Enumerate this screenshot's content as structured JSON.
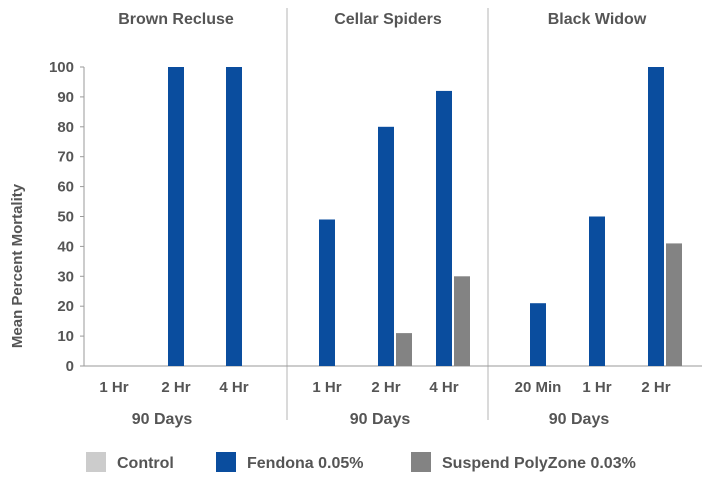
{
  "chart_data": {
    "type": "bar",
    "ylabel": "Mean Percent Mortality",
    "ylim": [
      0,
      100
    ],
    "yticks": [
      0,
      10,
      20,
      30,
      40,
      50,
      60,
      70,
      80,
      90,
      100
    ],
    "grid": false,
    "legend_position": "bottom",
    "groups": [
      {
        "title": "Brown Recluse",
        "subtitle": "90 Days",
        "categories": [
          "1 Hr",
          "2 Hr",
          "4 Hr"
        ],
        "series": [
          {
            "name": "Control",
            "values": [
              0,
              0,
              0
            ]
          },
          {
            "name": "Fendona 0.05%",
            "values": [
              0,
              100,
              100
            ]
          },
          {
            "name": "Suspend PolyZone 0.03%",
            "values": [
              0,
              0,
              0
            ]
          }
        ]
      },
      {
        "title": "Cellar Spiders",
        "subtitle": "90 Days",
        "categories": [
          "1 Hr",
          "2 Hr",
          "4 Hr"
        ],
        "series": [
          {
            "name": "Control",
            "values": [
              0,
              0,
              0
            ]
          },
          {
            "name": "Fendona 0.05%",
            "values": [
              49,
              80,
              92
            ]
          },
          {
            "name": "Suspend PolyZone 0.03%",
            "values": [
              0,
              11,
              30
            ]
          }
        ]
      },
      {
        "title": "Black Widow",
        "subtitle": "90 Days",
        "categories": [
          "20 Min",
          "1 Hr",
          "2 Hr"
        ],
        "series": [
          {
            "name": "Control",
            "values": [
              0,
              0,
              0
            ]
          },
          {
            "name": "Fendona 0.05%",
            "values": [
              21,
              50,
              100
            ]
          },
          {
            "name": "Suspend PolyZone 0.03%",
            "values": [
              0,
              0,
              41
            ]
          }
        ]
      }
    ],
    "legend": [
      {
        "name": "Control",
        "color": "#cccccc"
      },
      {
        "name": "Fendona 0.05%",
        "color": "#0a4d9e"
      },
      {
        "name": "Suspend PolyZone 0.03%",
        "color": "#838383"
      }
    ]
  }
}
